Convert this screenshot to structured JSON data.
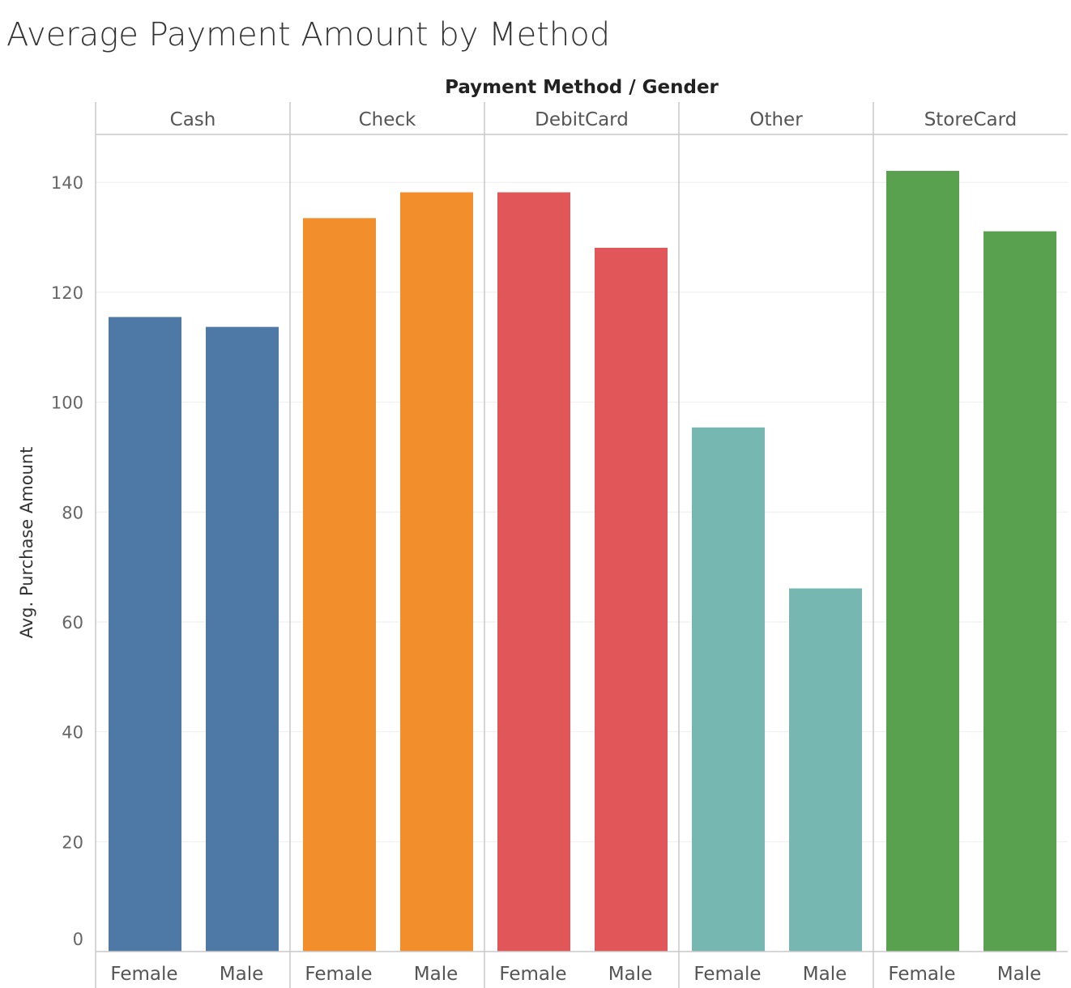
{
  "chart_data": {
    "type": "bar",
    "title": "Average Payment Amount by Method",
    "header": "Payment Method  /  Gender",
    "ylabel": "Avg. Purchase Amount",
    "ylim": [
      0,
      150
    ],
    "yticks": [
      "0",
      "20",
      "40",
      "60",
      "80",
      "100",
      "120",
      "140"
    ],
    "grid": true,
    "legend": "none",
    "categories": [
      "Female",
      "Male"
    ],
    "panels": [
      {
        "name": "Cash",
        "color": "#4e79a7",
        "values": [
          115.5,
          113.7
        ]
      },
      {
        "name": "Check",
        "color": "#f28e2c",
        "values": [
          133.5,
          138.2
        ]
      },
      {
        "name": "DebitCard",
        "color": "#e15759",
        "values": [
          138.2,
          128.1
        ]
      },
      {
        "name": "Other",
        "color": "#76b7b2",
        "values": [
          95.4,
          66.1
        ]
      },
      {
        "name": "StoreCard",
        "color": "#59a14f",
        "values": [
          142.1,
          131.1
        ]
      }
    ]
  }
}
